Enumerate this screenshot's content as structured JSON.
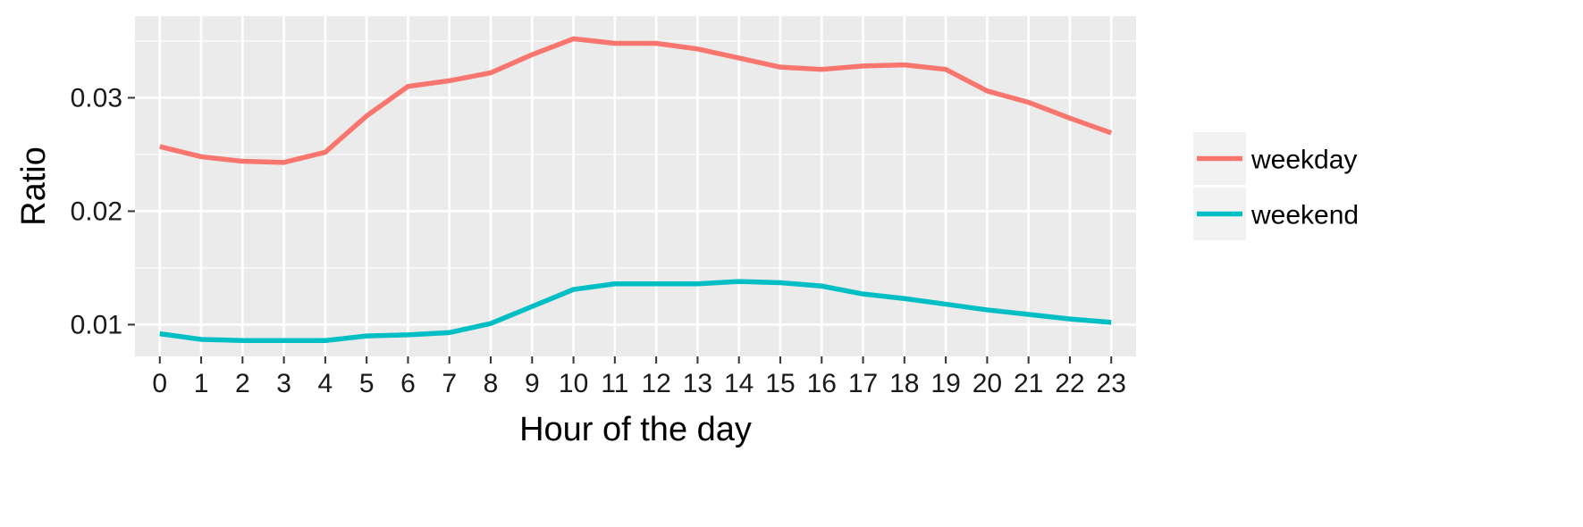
{
  "chart_data": {
    "type": "line",
    "title": "",
    "xlabel": "Hour of the day",
    "ylabel": "Ratio",
    "x": [
      0,
      1,
      2,
      3,
      4,
      5,
      6,
      7,
      8,
      9,
      10,
      11,
      12,
      13,
      14,
      15,
      16,
      17,
      18,
      19,
      20,
      21,
      22,
      23
    ],
    "x_tick_labels": [
      "0",
      "1",
      "2",
      "3",
      "4",
      "5",
      "6",
      "7",
      "8",
      "9",
      "10",
      "11",
      "12",
      "13",
      "14",
      "15",
      "16",
      "17",
      "18",
      "19",
      "20",
      "21",
      "22",
      "23"
    ],
    "y_ticks": [
      0.01,
      0.02,
      0.03
    ],
    "y_tick_labels": [
      "0.01",
      "0.02",
      "0.03"
    ],
    "xlim": [
      -0.6,
      23.6
    ],
    "ylim": [
      0.0072,
      0.0372
    ],
    "grid": true,
    "legend_position": "right",
    "series": [
      {
        "name": "weekday",
        "color": "#F8766D",
        "values": [
          0.0257,
          0.0248,
          0.0244,
          0.0243,
          0.0252,
          0.0284,
          0.031,
          0.0315,
          0.0322,
          0.0338,
          0.0352,
          0.0348,
          0.0348,
          0.0343,
          0.0335,
          0.0327,
          0.0325,
          0.0328,
          0.0329,
          0.0325,
          0.0306,
          0.0296,
          0.0282,
          0.0269
        ]
      },
      {
        "name": "weekend",
        "color": "#00BFC4",
        "values": [
          0.0092,
          0.0087,
          0.0086,
          0.0086,
          0.0086,
          0.009,
          0.0091,
          0.0093,
          0.0101,
          0.0116,
          0.0131,
          0.0136,
          0.0136,
          0.0136,
          0.0138,
          0.0137,
          0.0134,
          0.0127,
          0.0123,
          0.0118,
          0.0113,
          0.0109,
          0.0105,
          0.0102
        ]
      }
    ]
  }
}
